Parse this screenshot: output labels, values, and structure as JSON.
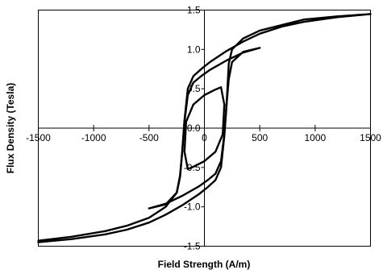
{
  "chart_data": {
    "type": "line",
    "title": "",
    "xlabel": "Field Strength (A/m)",
    "ylabel": "Flux Density (Tesla)",
    "xlim": [
      -1500,
      1500
    ],
    "ylim": [
      -1.5,
      1.5
    ],
    "x_ticks": [
      -1500,
      -1000,
      -500,
      0,
      500,
      1000,
      1500
    ],
    "x_tick_labels": [
      "-1500",
      "-1000",
      "-500",
      "0",
      "500",
      "1000",
      "1500"
    ],
    "y_ticks": [
      -1.5,
      -1.0,
      -0.5,
      0.0,
      0.5,
      1.0,
      1.5
    ],
    "y_tick_labels": [
      "-1.5",
      "-1.0",
      "-0.5",
      "0.0",
      "0.5",
      "1.0",
      "1.5"
    ],
    "grid": false,
    "legend": "none",
    "series": [
      {
        "color": "#000000",
        "x": [
          -1500,
          -1200,
          -900,
          -700,
          -500,
          -350,
          -250,
          -220,
          -200,
          -180,
          -150,
          -100,
          -30,
          50,
          200,
          350,
          500,
          700,
          900,
          1200,
          1500,
          1200,
          900,
          700,
          500,
          350,
          250,
          220,
          200,
          180,
          150,
          100,
          30,
          -50,
          -200,
          -350,
          -500,
          -700,
          -900,
          -1200,
          -1500
        ],
        "y": [
          -1.43,
          -1.38,
          -1.31,
          -1.24,
          -1.14,
          -1.0,
          -0.82,
          -0.6,
          -0.3,
          0.1,
          0.5,
          0.66,
          0.75,
          0.84,
          0.98,
          1.1,
          1.2,
          1.29,
          1.35,
          1.41,
          1.45,
          1.42,
          1.38,
          1.31,
          1.24,
          1.14,
          1.0,
          0.82,
          0.3,
          -0.1,
          -0.5,
          -0.66,
          -0.75,
          -0.84,
          -0.98,
          -1.1,
          -1.2,
          -1.29,
          -1.35,
          -1.41,
          -1.45
        ]
      },
      {
        "color": "#000000",
        "x": [
          -500,
          -350,
          -250,
          -220,
          -200,
          -180,
          -150,
          -100,
          -30,
          50,
          200,
          350,
          500,
          350,
          250,
          220,
          200,
          180,
          150,
          100,
          30,
          -50,
          -200,
          -350,
          -500
        ],
        "y": [
          -1.02,
          -0.97,
          -0.82,
          -0.62,
          -0.3,
          0.08,
          0.42,
          0.58,
          0.66,
          0.74,
          0.86,
          0.96,
          1.02,
          0.97,
          0.84,
          0.62,
          0.3,
          -0.08,
          -0.42,
          -0.58,
          -0.66,
          -0.74,
          -0.86,
          -0.96,
          -1.02
        ]
      },
      {
        "color": "#000000",
        "x": [
          -150,
          -180,
          -165,
          -100,
          0,
          100,
          150,
          180,
          165,
          100,
          0,
          -100,
          -150
        ],
        "y": [
          -0.52,
          -0.3,
          0.08,
          0.3,
          0.42,
          0.49,
          0.52,
          0.3,
          -0.08,
          -0.3,
          -0.42,
          -0.49,
          -0.52
        ]
      }
    ]
  }
}
